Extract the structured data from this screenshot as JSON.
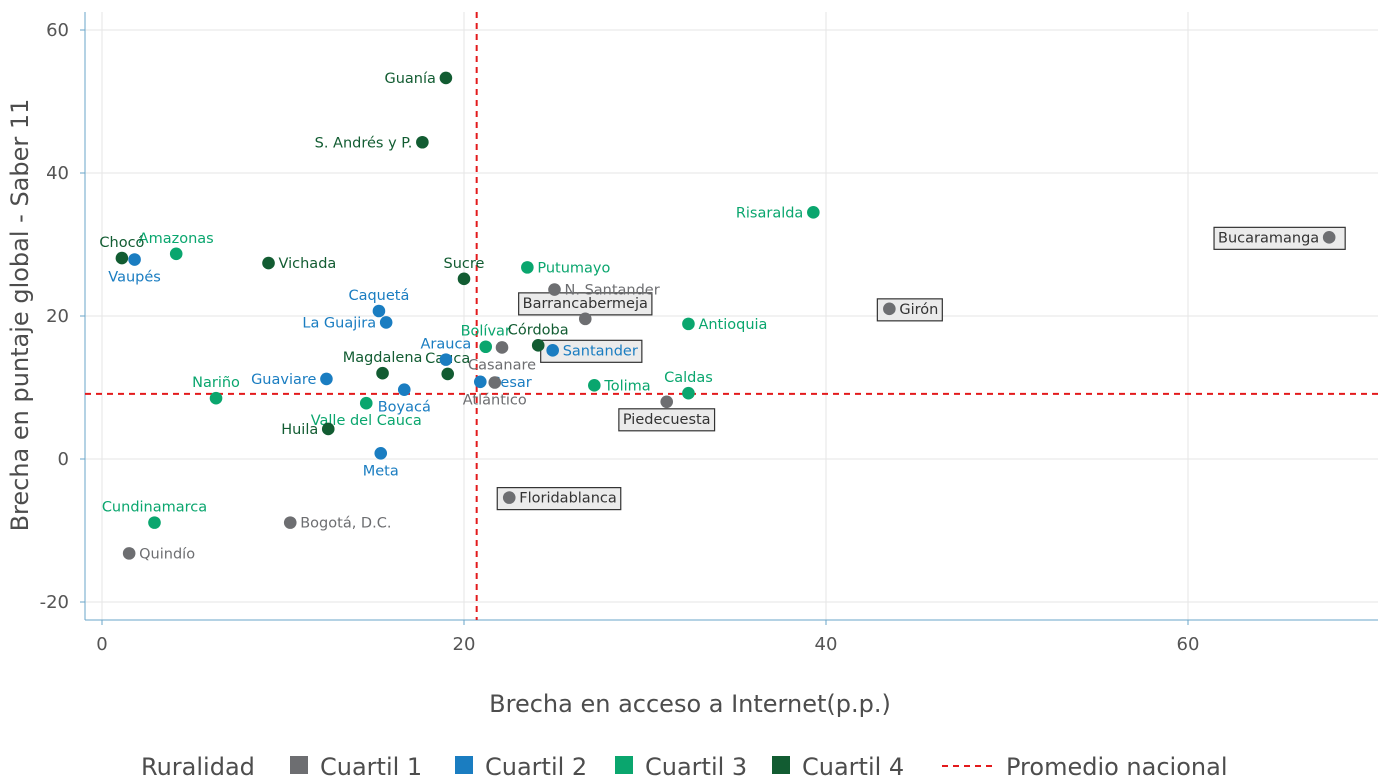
{
  "chart_data": {
    "type": "scatter",
    "xlabel": "Brecha en acceso a Internet(p.p.)",
    "ylabel": "Brecha en puntaje global - Saber 11",
    "xlim": [
      -1,
      70.5
    ],
    "ylim": [
      -20.5,
      62.5
    ],
    "xticks": [
      0,
      20,
      40,
      60
    ],
    "yticks": [
      -20,
      0,
      20,
      40,
      60
    ],
    "grid": true,
    "legend": {
      "title": "Ruralidad",
      "position": "bottom",
      "items": [
        {
          "name": "Cuartil 1",
          "color": "#6d6e71",
          "kind": "square"
        },
        {
          "name": "Cuartil 2",
          "color": "#1a7dc1",
          "kind": "square"
        },
        {
          "name": "Cuartil 3",
          "color": "#0aa66e",
          "kind": "square"
        },
        {
          "name": "Cuartil 4",
          "color": "#125c32",
          "kind": "square"
        },
        {
          "name": "Promedio nacional",
          "color": "#e31a1c",
          "kind": "dashed-line"
        }
      ]
    },
    "reference_lines": {
      "x": 20.7,
      "y": 9.1,
      "color": "#e31a1c"
    },
    "series": [
      {
        "name": "Cuartil 1",
        "color": "#6d6e71",
        "points": [
          {
            "label": "Bucaramanga",
            "x": 67.8,
            "y": 31,
            "anchor": "end",
            "boxed": true
          },
          {
            "label": "Girón",
            "x": 43.5,
            "y": 21,
            "anchor": "start",
            "boxed": true
          },
          {
            "label": "Barrancabermeja",
            "x": 26.7,
            "y": 19.6,
            "anchor": "above",
            "boxed": true
          },
          {
            "label": "N. Santander",
            "x": 25,
            "y": 23.7,
            "anchor": "start",
            "boxed": false
          },
          {
            "label": "Casanare",
            "x": 22.1,
            "y": 15.6,
            "anchor": "below",
            "boxed": false
          },
          {
            "label": "Atlántico",
            "x": 21.7,
            "y": 10.7,
            "anchor": "below",
            "boxed": false
          },
          {
            "label": "Piedecuesta",
            "x": 31.2,
            "y": 8,
            "anchor": "below",
            "boxed": true
          },
          {
            "label": "Floridablanca",
            "x": 22.5,
            "y": -5.4,
            "anchor": "start",
            "boxed": true
          },
          {
            "label": "Bogotá, D.C.",
            "x": 10.4,
            "y": -8.9,
            "anchor": "start",
            "boxed": false
          },
          {
            "label": "Quindío",
            "x": 1.5,
            "y": -13.2,
            "anchor": "start",
            "boxed": false
          }
        ]
      },
      {
        "name": "Cuartil 2",
        "color": "#1a7dc1",
        "points": [
          {
            "label": "Vaupés",
            "x": 1.8,
            "y": 27.9,
            "anchor": "below",
            "boxed": false
          },
          {
            "label": "Caquetá",
            "x": 15.3,
            "y": 20.7,
            "anchor": "above",
            "boxed": false
          },
          {
            "label": "La Guajira",
            "x": 15.7,
            "y": 19.1,
            "anchor": "end",
            "boxed": false
          },
          {
            "label": "Arauca",
            "x": 19,
            "y": 13.9,
            "anchor": "above",
            "boxed": false
          },
          {
            "label": "Santander",
            "x": 24.9,
            "y": 15.2,
            "anchor": "start",
            "boxed": true
          },
          {
            "label": "Guaviare",
            "x": 12.4,
            "y": 11.2,
            "anchor": "end",
            "boxed": false
          },
          {
            "label": "Boyacá",
            "x": 16.7,
            "y": 9.7,
            "anchor": "below",
            "boxed": false
          },
          {
            "label": "Cesar",
            "x": 20.9,
            "y": 10.8,
            "anchor": "start",
            "boxed": false
          },
          {
            "label": "Meta",
            "x": 15.4,
            "y": 0.8,
            "anchor": "below",
            "boxed": false
          }
        ]
      },
      {
        "name": "Cuartil 3",
        "color": "#0aa66e",
        "points": [
          {
            "label": "Amazonas",
            "x": 4.1,
            "y": 28.7,
            "anchor": "above",
            "boxed": false
          },
          {
            "label": "Putumayo",
            "x": 23.5,
            "y": 26.8,
            "anchor": "start",
            "boxed": false
          },
          {
            "label": "Risaralda",
            "x": 39.3,
            "y": 34.5,
            "anchor": "end",
            "boxed": false
          },
          {
            "label": "Antioquia",
            "x": 32.4,
            "y": 18.9,
            "anchor": "start",
            "boxed": false
          },
          {
            "label": "Bolívar",
            "x": 21.2,
            "y": 15.7,
            "anchor": "above",
            "boxed": false
          },
          {
            "label": "Nariño",
            "x": 6.3,
            "y": 8.5,
            "anchor": "above",
            "boxed": false
          },
          {
            "label": "Tolima",
            "x": 27.2,
            "y": 10.3,
            "anchor": "start",
            "boxed": false
          },
          {
            "label": "Caldas",
            "x": 32.4,
            "y": 9.2,
            "anchor": "above",
            "boxed": false
          },
          {
            "label": "Valle del Cauca",
            "x": 14.6,
            "y": 7.8,
            "anchor": "below",
            "boxed": false
          },
          {
            "label": "Cundinamarca",
            "x": 2.9,
            "y": -8.9,
            "anchor": "above",
            "boxed": false
          }
        ]
      },
      {
        "name": "Cuartil 4",
        "color": "#125c32",
        "points": [
          {
            "label": "Guanía",
            "x": 19,
            "y": 53.3,
            "anchor": "end",
            "boxed": false
          },
          {
            "label": "S. Andrés y P.",
            "x": 17.7,
            "y": 44.3,
            "anchor": "end",
            "boxed": false
          },
          {
            "label": "Chocó",
            "x": 1.1,
            "y": 28.1,
            "anchor": "above",
            "boxed": false
          },
          {
            "label": "Vichada",
            "x": 9.2,
            "y": 27.4,
            "anchor": "start",
            "boxed": false
          },
          {
            "label": "Sucre",
            "x": 20,
            "y": 25.2,
            "anchor": "above",
            "boxed": false
          },
          {
            "label": "Córdoba",
            "x": 24.1,
            "y": 15.9,
            "anchor": "above",
            "boxed": false
          },
          {
            "label": "Magdalena",
            "x": 15.5,
            "y": 12,
            "anchor": "above",
            "boxed": false
          },
          {
            "label": "Cauca",
            "x": 19.1,
            "y": 11.9,
            "anchor": "above",
            "boxed": false
          },
          {
            "label": "Huila",
            "x": 12.5,
            "y": 4.2,
            "anchor": "end",
            "boxed": false
          }
        ]
      }
    ]
  }
}
